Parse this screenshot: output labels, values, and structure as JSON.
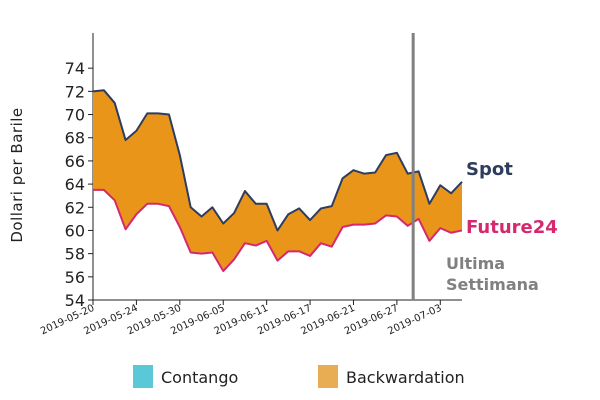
{
  "chart_data": {
    "type": "area",
    "title": "",
    "xlabel": "",
    "ylabel": "Dollari per Barile",
    "ylim": [
      54,
      76
    ],
    "yticks": [
      54,
      56,
      58,
      60,
      62,
      64,
      66,
      68,
      70,
      72,
      74
    ],
    "xticks": [
      "2019-05-20",
      "2019-05-24",
      "2019-05-30",
      "2019-06-05",
      "2019-06-11",
      "2019-06-17",
      "2019-06-21",
      "2019-06-27",
      "2019-07-03"
    ],
    "xtick_index": [
      0,
      4,
      8,
      12,
      16,
      20,
      24,
      28,
      32
    ],
    "series": [
      {
        "name": "Spot",
        "color": "#2e3d5e",
        "values": [
          72.0,
          72.1,
          71.0,
          67.8,
          68.6,
          70.1,
          70.1,
          70.0,
          66.5,
          62.0,
          61.2,
          62.0,
          60.6,
          61.5,
          63.4,
          62.3,
          62.3,
          60.0,
          61.4,
          61.9,
          60.9,
          61.9,
          62.1,
          64.5,
          65.2,
          64.9,
          65.0,
          66.5,
          66.7,
          64.9,
          65.1,
          62.3,
          63.9,
          63.2,
          64.2
        ]
      },
      {
        "name": "Future24",
        "color": "#d6286e",
        "values": [
          63.5,
          63.5,
          62.6,
          60.1,
          61.4,
          62.3,
          62.3,
          62.1,
          60.3,
          58.1,
          58.0,
          58.1,
          56.5,
          57.5,
          58.9,
          58.7,
          59.1,
          57.4,
          58.2,
          58.2,
          57.8,
          58.9,
          58.6,
          60.3,
          60.5,
          60.5,
          60.6,
          61.3,
          61.2,
          60.4,
          61.0,
          59.1,
          60.2,
          59.8,
          60.0
        ]
      }
    ],
    "fill_between": {
      "name": "Backwardation",
      "color": "#e8951a"
    },
    "vline": {
      "x_index": 29.5,
      "color": "#808080",
      "label": "Ultima Settimana"
    },
    "legend": [
      {
        "name": "Contango",
        "color": "#5bc8d8"
      },
      {
        "name": "Backwardation",
        "color": "#e8ac52"
      }
    ]
  },
  "labels": {
    "spot": "Spot",
    "future": "Future24",
    "annot_line1": "Ultima",
    "annot_line2": "Settimana"
  }
}
